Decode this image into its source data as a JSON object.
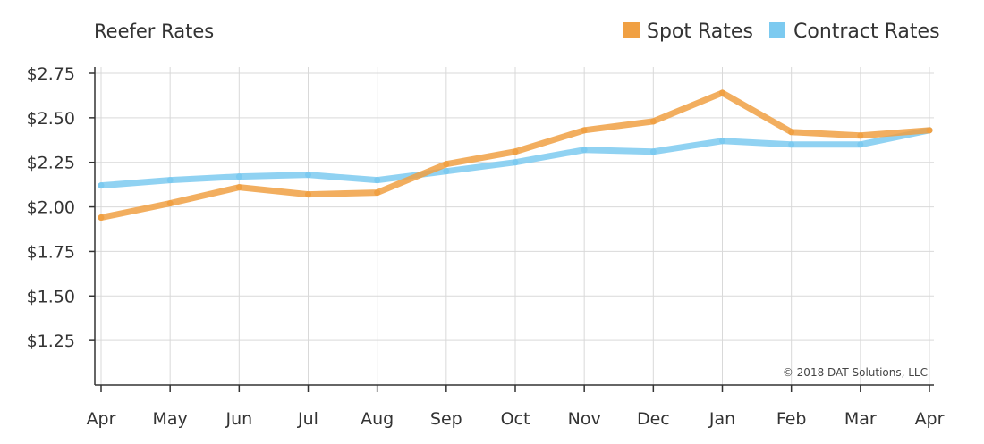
{
  "chart_data": {
    "type": "line",
    "title": "Reefer Rates",
    "categories": [
      "Apr",
      "May",
      "Jun",
      "Jul",
      "Aug",
      "Sep",
      "Oct",
      "Nov",
      "Dec",
      "Jan",
      "Feb",
      "Mar",
      "Apr"
    ],
    "series": [
      {
        "name": "Spot Rates",
        "color": "#F0A043",
        "values": [
          1.94,
          2.02,
          2.11,
          2.07,
          2.08,
          2.24,
          2.31,
          2.43,
          2.48,
          2.64,
          2.42,
          2.4,
          2.43
        ]
      },
      {
        "name": "Contract Rates",
        "color": "#7CCAF0",
        "values": [
          2.12,
          2.15,
          2.17,
          2.18,
          2.15,
          2.2,
          2.25,
          2.32,
          2.31,
          2.37,
          2.35,
          2.35,
          2.43
        ]
      }
    ],
    "y_ticks": [
      "$2.75",
      "$2.50",
      "$2.25",
      "$2.00",
      "$1.75",
      "$1.50",
      "$1.25"
    ],
    "y_tick_values": [
      2.75,
      2.5,
      2.25,
      2.0,
      1.75,
      1.5,
      1.25
    ],
    "ylim": [
      1.0,
      2.75
    ],
    "xlabel": "",
    "ylabel": "",
    "grid": true,
    "legend_position": "top-right",
    "annotation": "© 2018 DAT Solutions, LLC"
  }
}
